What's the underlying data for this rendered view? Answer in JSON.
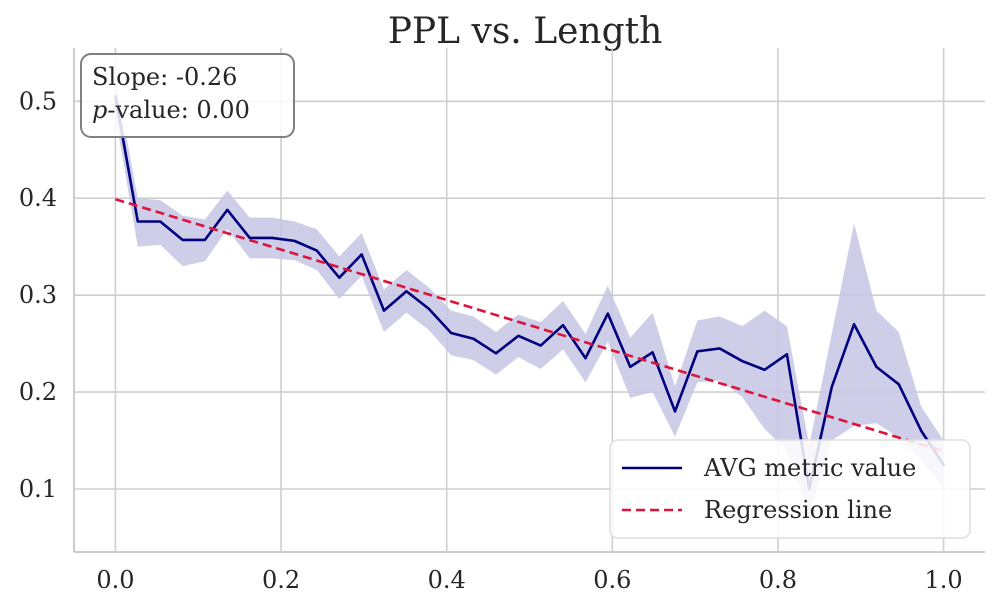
{
  "chart_data": {
    "type": "line",
    "title": "PPL vs. Length",
    "xlabel": "",
    "ylabel": "",
    "xlim": [
      -0.05,
      1.05
    ],
    "ylim": [
      0.035,
      0.555
    ],
    "xticks": [
      0.0,
      0.2,
      0.4,
      0.6,
      0.8,
      1.0
    ],
    "xtick_labels": [
      "0.0",
      "0.2",
      "0.4",
      "0.6",
      "0.8",
      "1.0"
    ],
    "yticks": [
      0.1,
      0.2,
      0.3,
      0.4,
      0.5
    ],
    "ytick_labels": [
      "0.1",
      "0.2",
      "0.3",
      "0.4",
      "0.5"
    ],
    "grid": true,
    "series": [
      {
        "name": "AVG metric value",
        "style": "solid",
        "color": "#00007f",
        "band_color": "#c5c6e4",
        "x": [
          0.0,
          0.027,
          0.0541,
          0.0811,
          0.1081,
          0.1351,
          0.1622,
          0.1892,
          0.2162,
          0.2432,
          0.2703,
          0.2973,
          0.3243,
          0.3514,
          0.3784,
          0.4054,
          0.4324,
          0.4595,
          0.4865,
          0.5135,
          0.5405,
          0.5676,
          0.5946,
          0.6216,
          0.6486,
          0.6757,
          0.7027,
          0.7297,
          0.7568,
          0.7838,
          0.8108,
          0.8378,
          0.8649,
          0.8919,
          0.9189,
          0.9459,
          0.973,
          1.0
        ],
        "y": [
          0.505,
          0.376,
          0.376,
          0.357,
          0.357,
          0.388,
          0.359,
          0.359,
          0.356,
          0.346,
          0.318,
          0.342,
          0.284,
          0.304,
          0.286,
          0.261,
          0.255,
          0.24,
          0.258,
          0.248,
          0.269,
          0.235,
          0.281,
          0.226,
          0.241,
          0.18,
          0.242,
          0.245,
          0.232,
          0.223,
          0.239,
          0.1,
          0.205,
          0.27,
          0.226,
          0.208,
          0.16,
          0.125
        ],
        "y_lower": [
          0.485,
          0.35,
          0.352,
          0.33,
          0.335,
          0.368,
          0.338,
          0.338,
          0.336,
          0.326,
          0.296,
          0.32,
          0.262,
          0.282,
          0.264,
          0.238,
          0.233,
          0.218,
          0.236,
          0.224,
          0.244,
          0.21,
          0.252,
          0.194,
          0.2,
          0.154,
          0.21,
          0.212,
          0.195,
          0.162,
          0.14,
          0.075,
          0.15,
          0.165,
          0.168,
          0.153,
          0.13,
          0.1
        ],
        "y_upper": [
          0.525,
          0.4,
          0.398,
          0.382,
          0.378,
          0.408,
          0.38,
          0.38,
          0.376,
          0.368,
          0.34,
          0.364,
          0.306,
          0.326,
          0.308,
          0.284,
          0.278,
          0.262,
          0.28,
          0.272,
          0.294,
          0.26,
          0.31,
          0.256,
          0.282,
          0.206,
          0.274,
          0.278,
          0.268,
          0.284,
          0.268,
          0.145,
          0.26,
          0.374,
          0.284,
          0.262,
          0.185,
          0.15
        ]
      },
      {
        "name": "Regression line",
        "style": "dashed",
        "color": "#dc143c",
        "x": [
          0.0,
          1.0
        ],
        "y": [
          0.399,
          0.139
        ]
      }
    ],
    "annotation": {
      "slope_label": "Slope: -0.26",
      "p_prefix": "p",
      "p_suffix": "-value: 0.00"
    },
    "legend": {
      "placement": "lower-right",
      "entries": [
        "AVG metric value",
        "Regression line"
      ]
    }
  }
}
